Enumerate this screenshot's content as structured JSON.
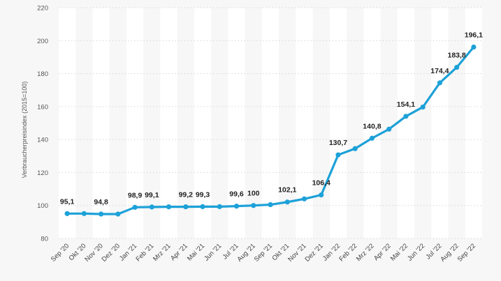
{
  "chart_data": {
    "type": "line",
    "ylabel": "Verbraucherpreisindex (2015=100)",
    "ylim": [
      80,
      220
    ],
    "yticks": [
      80,
      100,
      120,
      140,
      160,
      180,
      200,
      220
    ],
    "ytick_labels": [
      "80",
      "100",
      "120",
      "140",
      "160",
      "180",
      "200",
      "220"
    ],
    "grid": true,
    "banded_columns": true,
    "categories": [
      "Sep '20",
      "Okt '20",
      "Nov '20",
      "Dez '20",
      "Jan '21",
      "Feb '21",
      "Mrz '21",
      "Apr '21",
      "Mai '21",
      "Jun '21",
      "Jul '21",
      "Aug '21",
      "Sep '21",
      "Okt '21",
      "Nov '21",
      "Dez '21",
      "Jan '22",
      "Feb '22",
      "Mrz '22",
      "Apr '22",
      "Mai '22",
      "Jun '22",
      "Jul '22",
      "Aug '22",
      "Sep '22"
    ],
    "values": [
      95.1,
      95.1,
      94.8,
      94.8,
      98.9,
      99.1,
      99.2,
      99.2,
      99.3,
      99.3,
      99.6,
      100,
      100.5,
      102.1,
      104,
      106.4,
      130.7,
      134.5,
      140.8,
      146.3,
      154.1,
      159.7,
      174.4,
      183.8,
      196.1
    ],
    "data_labels": [
      "95,1",
      null,
      "94,8",
      null,
      "98,9",
      "99,1",
      null,
      "99,2",
      "99,3",
      null,
      "99,6",
      "100",
      null,
      "102,1",
      null,
      "106,4",
      "130,7",
      null,
      "140,8",
      null,
      "154,1",
      null,
      "174,4",
      "183,8",
      "196,1"
    ],
    "line_color": "#1da1d8",
    "band_color": "#ffffff",
    "background": "#f7f7f7"
  }
}
